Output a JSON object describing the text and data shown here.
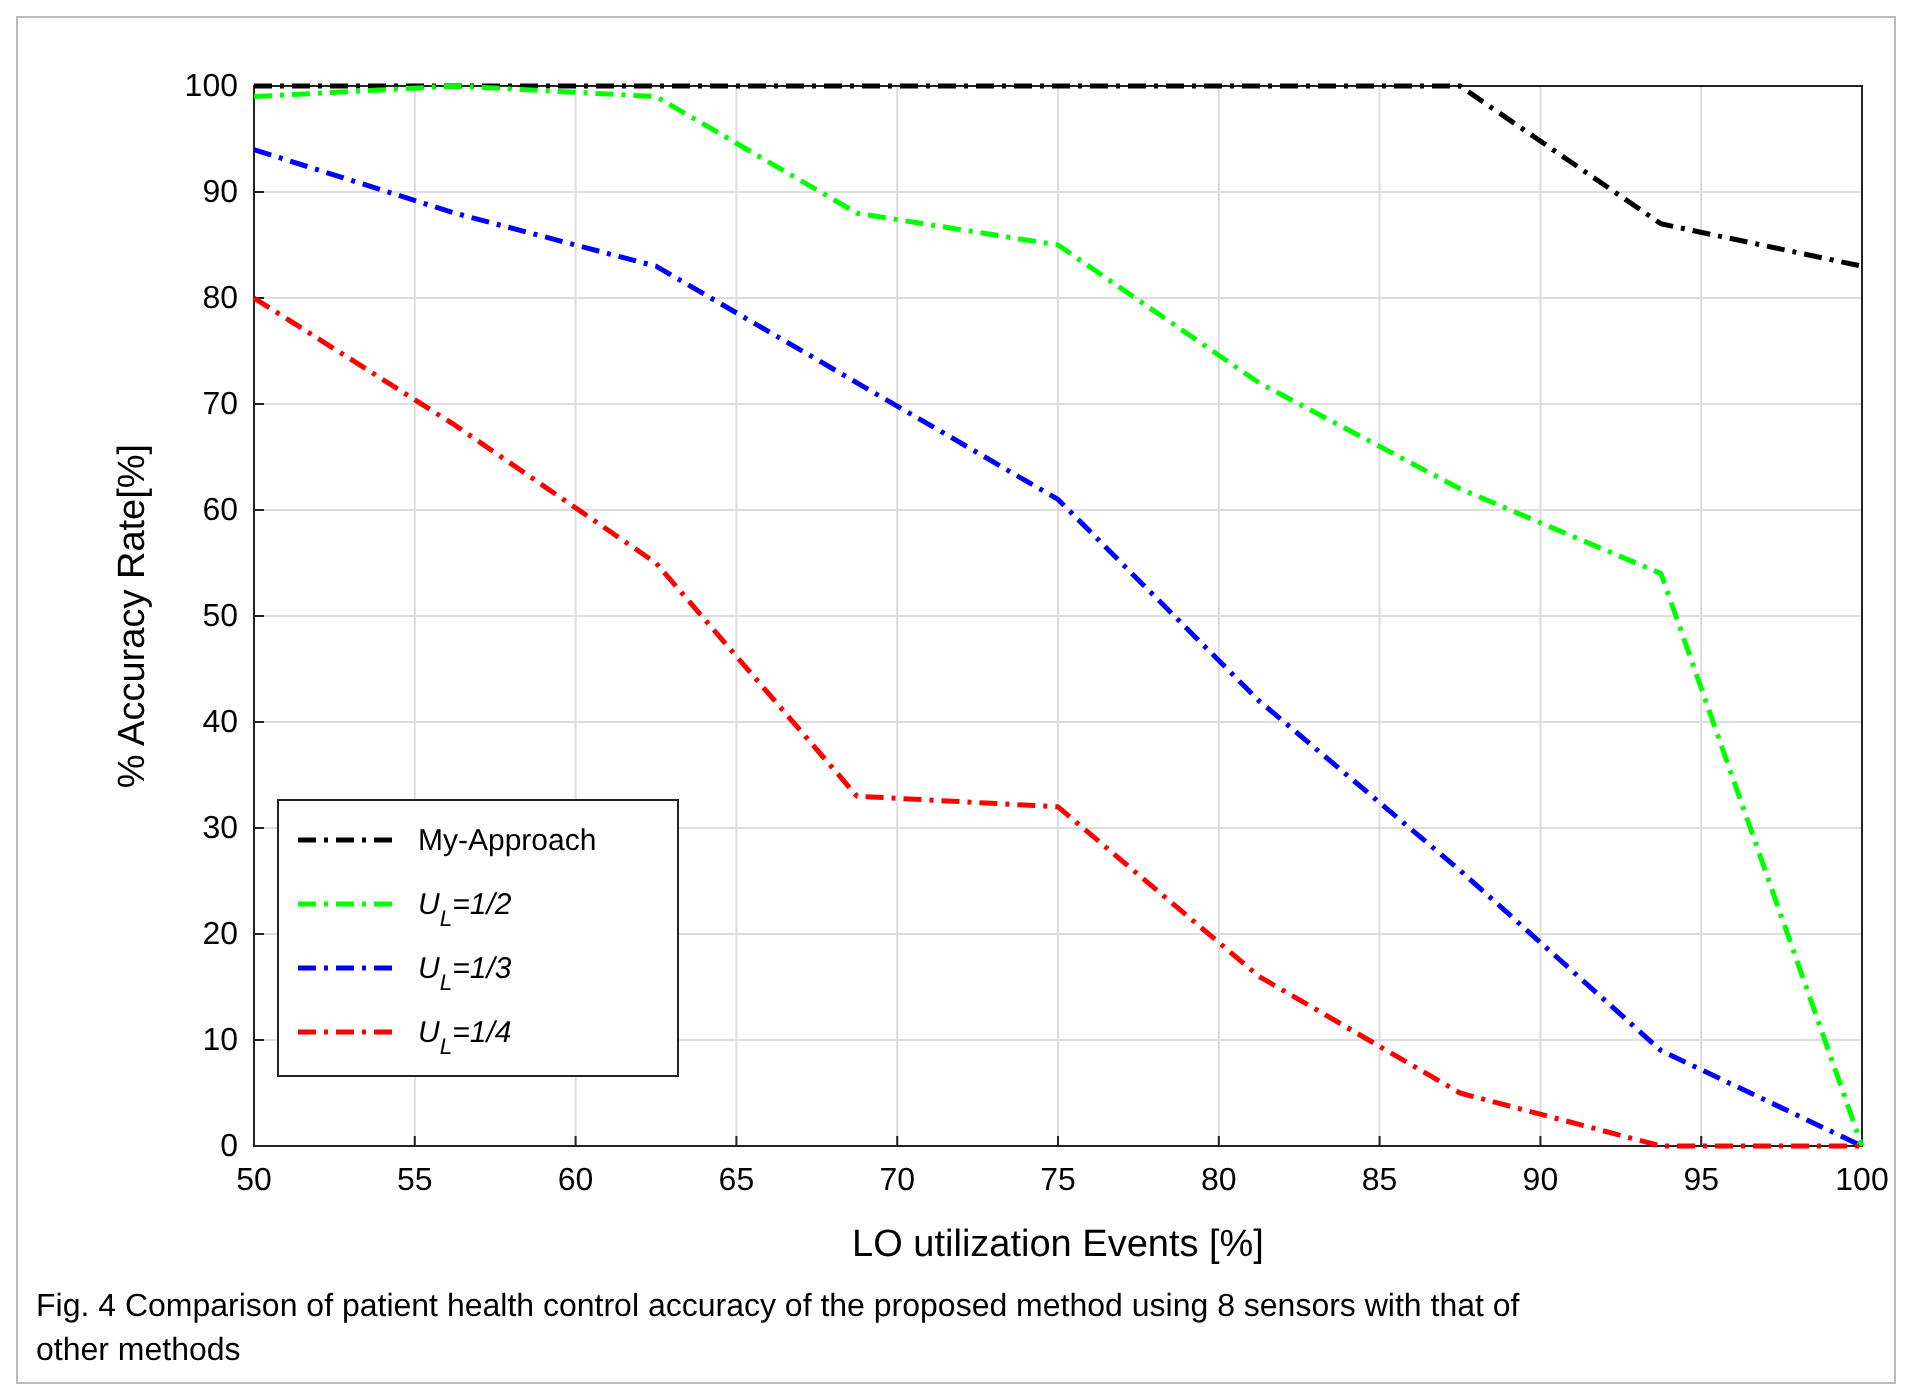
{
  "chart_data": {
    "type": "line",
    "xlabel": "LO utilization Events [%]",
    "ylabel": "% Accuracy Rate[%]",
    "x": [
      50,
      56.25,
      62.5,
      68.75,
      75,
      81.25,
      87.5,
      93.75,
      100
    ],
    "series": [
      {
        "name": "My-Approach",
        "color": "#000000",
        "values": [
          100,
          100,
          100,
          100,
          100,
          100,
          100,
          87,
          83
        ]
      },
      {
        "name": "U$_{L}$=1/2",
        "color": "#00ff00",
        "values": [
          99,
          100,
          99,
          88,
          85,
          72,
          62,
          54,
          0
        ]
      },
      {
        "name": "U$_{L}$=1/3",
        "color": "#0000ff",
        "values": [
          94,
          88,
          83,
          72,
          61,
          42,
          26,
          9,
          0
        ]
      },
      {
        "name": "U$_{L}$=1/4",
        "color": "#ff0000",
        "values": [
          80,
          68,
          55,
          33,
          32,
          16,
          5,
          0,
          0
        ]
      }
    ],
    "xlim": [
      50,
      100
    ],
    "xticks": [
      50,
      55,
      60,
      65,
      70,
      75,
      80,
      85,
      90,
      95,
      100
    ],
    "ylim": [
      0,
      100
    ],
    "yticks": [
      0,
      10,
      20,
      30,
      40,
      50,
      60,
      70,
      80,
      90,
      100
    ],
    "grid": true,
    "legend": "bottom left",
    "line_style": "dashed",
    "marker": "none",
    "annotations": [
      "Fig. 4  Comparison of patient health control accuracy of the proposed method using 8 sensors with that of other methods"
    ]
  }
}
